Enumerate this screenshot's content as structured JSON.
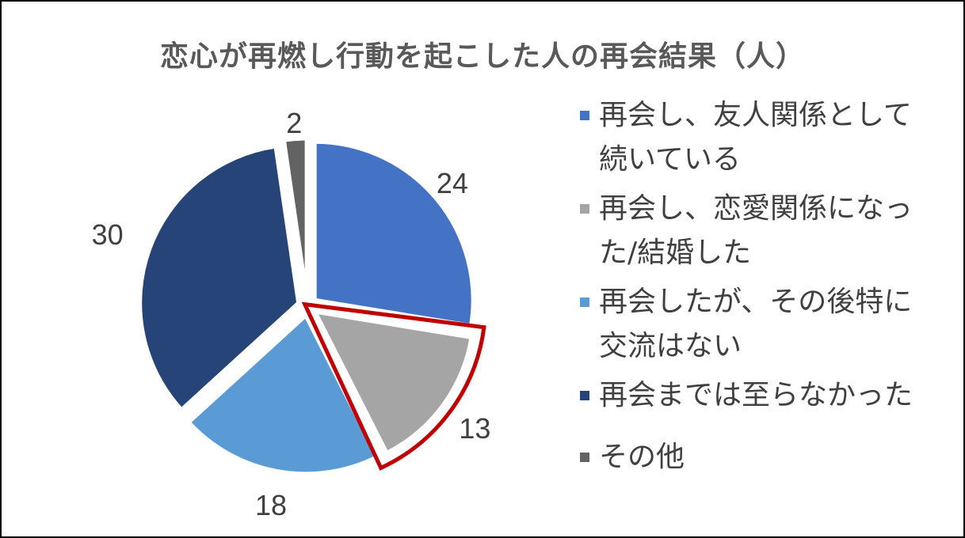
{
  "chart_data": {
    "type": "pie",
    "title": "恋心が再燃し行動を起こした人の再会結果（人）",
    "slices": [
      {
        "label": "再会し、友人関係として続いている",
        "value": 24,
        "color": "#4472C4"
      },
      {
        "label": "再会し、恋愛関係になった/結婚した",
        "value": 13,
        "color": "#A5A5A5"
      },
      {
        "label": "再会したが、その後特に交流はない",
        "value": 18,
        "color": "#5B9BD5"
      },
      {
        "label": "再会までは至らなかった",
        "value": 30,
        "color": "#264478"
      },
      {
        "label": "その他",
        "value": 2,
        "color": "#636363"
      }
    ],
    "highlight_color": "#C00000",
    "highlighted_slice": 1,
    "legend_position": "right",
    "start_angle_deg": 0,
    "direction": "clockwise"
  }
}
